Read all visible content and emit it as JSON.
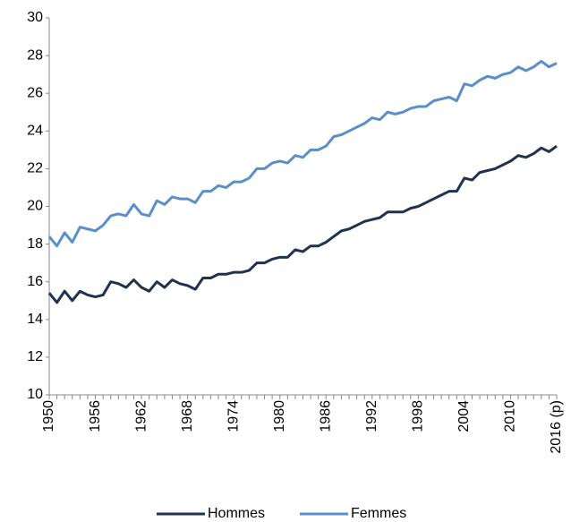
{
  "chart_data": {
    "type": "line",
    "categories": [
      "1950",
      null,
      null,
      null,
      null,
      null,
      "1956",
      null,
      null,
      null,
      null,
      null,
      "1962",
      null,
      null,
      null,
      null,
      null,
      "1968",
      null,
      null,
      null,
      null,
      null,
      "1974",
      null,
      null,
      null,
      null,
      null,
      "1980",
      null,
      null,
      null,
      null,
      null,
      "1986",
      null,
      null,
      null,
      null,
      null,
      "1992",
      null,
      null,
      null,
      null,
      null,
      "1998",
      null,
      null,
      null,
      null,
      null,
      "2004",
      null,
      null,
      null,
      null,
      null,
      "2010",
      null,
      null,
      null,
      null,
      null,
      "2016 (p)"
    ],
    "series": [
      {
        "name": "Hommes",
        "color": "#1f3350",
        "values": [
          15.4,
          14.9,
          15.5,
          15.0,
          15.5,
          15.3,
          15.2,
          15.3,
          16.0,
          15.9,
          15.7,
          16.1,
          15.7,
          15.5,
          16.0,
          15.7,
          16.1,
          15.9,
          15.8,
          15.6,
          16.2,
          16.2,
          16.4,
          16.4,
          16.5,
          16.5,
          16.6,
          17.0,
          17.0,
          17.2,
          17.3,
          17.3,
          17.7,
          17.6,
          17.9,
          17.9,
          18.1,
          18.4,
          18.7,
          18.8,
          19.0,
          19.2,
          19.3,
          19.4,
          19.7,
          19.7,
          19.7,
          19.9,
          20.0,
          20.2,
          20.4,
          20.6,
          20.8,
          20.8,
          21.5,
          21.4,
          21.8,
          21.9,
          22.0,
          22.2,
          22.4,
          22.7,
          22.6,
          22.8,
          23.1,
          22.9,
          23.2
        ]
      },
      {
        "name": "Femmes",
        "color": "#5b8fc9",
        "values": [
          18.4,
          17.9,
          18.6,
          18.1,
          18.9,
          18.8,
          18.7,
          19.0,
          19.5,
          19.6,
          19.5,
          20.1,
          19.6,
          19.5,
          20.3,
          20.1,
          20.5,
          20.4,
          20.4,
          20.2,
          20.8,
          20.8,
          21.1,
          21.0,
          21.3,
          21.3,
          21.5,
          22.0,
          22.0,
          22.3,
          22.4,
          22.3,
          22.7,
          22.6,
          23.0,
          23.0,
          23.2,
          23.7,
          23.8,
          24.0,
          24.2,
          24.4,
          24.7,
          24.6,
          25.0,
          24.9,
          25.0,
          25.2,
          25.3,
          25.3,
          25.6,
          25.7,
          25.8,
          25.6,
          26.5,
          26.4,
          26.7,
          26.9,
          26.8,
          27.0,
          27.1,
          27.4,
          27.2,
          27.4,
          27.7,
          27.4,
          27.6
        ]
      }
    ],
    "ylim": [
      10,
      30
    ],
    "yticks": [
      10,
      12,
      14,
      16,
      18,
      20,
      22,
      24,
      26,
      28,
      30
    ],
    "grid": false,
    "legend": "bottom"
  }
}
